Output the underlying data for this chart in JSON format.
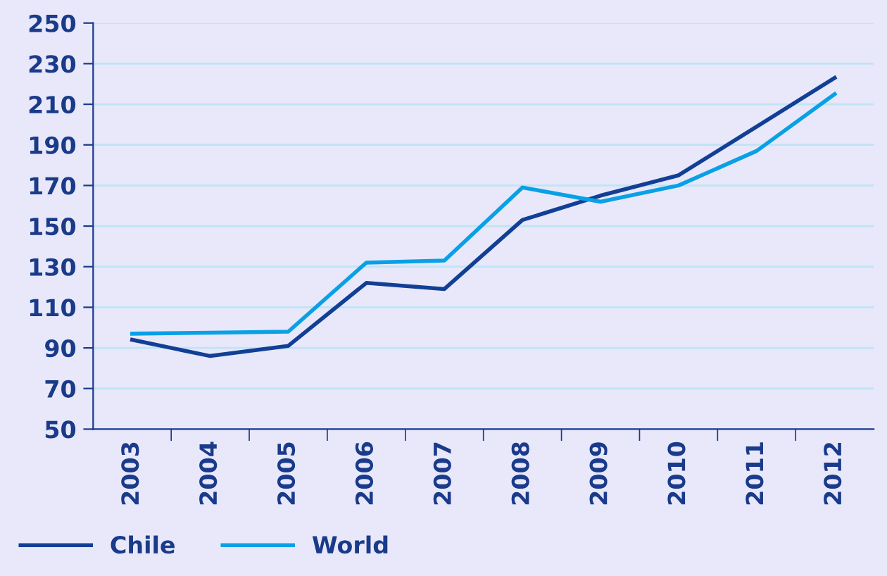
{
  "chart_data": {
    "type": "line",
    "categories": [
      "2003",
      "2004",
      "2005",
      "2006",
      "2007",
      "2008",
      "2009",
      "2010",
      "2011",
      "2012"
    ],
    "series": [
      {
        "name": "Chile",
        "color": "#123f96",
        "values": [
          94,
          86,
          91,
          122,
          119,
          153,
          165,
          175,
          199,
          223
        ]
      },
      {
        "name": "World",
        "color": "#0aa0e6",
        "values": [
          97,
          97.5,
          98,
          132,
          133,
          169,
          162,
          170,
          187,
          215
        ]
      }
    ],
    "ylim": [
      50,
      250
    ],
    "yticks": [
      50,
      70,
      90,
      110,
      130,
      150,
      170,
      190,
      210,
      230,
      250
    ],
    "grid": "y",
    "legend": "bottom left",
    "marker": "none",
    "line_style": "solid"
  }
}
